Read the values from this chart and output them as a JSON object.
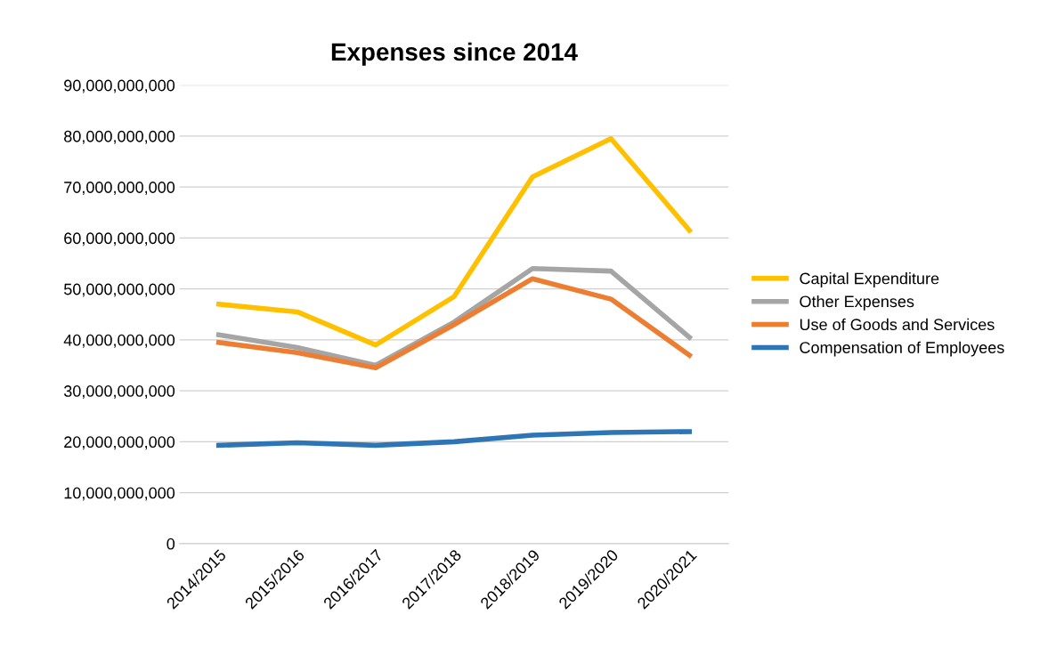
{
  "chart_data": {
    "type": "line",
    "title": "Expenses since 2014",
    "categories": [
      "2014/2015",
      "2015/2016",
      "2016/2017",
      "2017/2018",
      "2018/2019",
      "2019/2020",
      "2020/2021"
    ],
    "series": [
      {
        "name": "Capital Expenditure",
        "color": "#ffc000",
        "values": [
          47000000000,
          45500000000,
          39000000000,
          48500000000,
          72000000000,
          79500000000,
          61500000000
        ]
      },
      {
        "name": "Other Expenses",
        "color": "#a5a5a5",
        "values": [
          41000000000,
          38500000000,
          35000000000,
          43500000000,
          54000000000,
          53500000000,
          40500000000
        ]
      },
      {
        "name": "Use of Goods and Services",
        "color": "#ed7d31",
        "values": [
          39500000000,
          37500000000,
          34500000000,
          43000000000,
          52000000000,
          48000000000,
          37000000000
        ]
      },
      {
        "name": "Compensation of Employees",
        "color": "#2e75b6",
        "values": [
          19300000000,
          19800000000,
          19300000000,
          20000000000,
          21300000000,
          21800000000,
          22000000000
        ]
      }
    ],
    "ylim": [
      0,
      90000000000
    ],
    "yticks": [
      {
        "value": 0,
        "label": "0"
      },
      {
        "value": 10000000000,
        "label": "10,000,000,000"
      },
      {
        "value": 20000000000,
        "label": "20,000,000,000"
      },
      {
        "value": 30000000000,
        "label": "30,000,000,000"
      },
      {
        "value": 40000000000,
        "label": "40,000,000,000"
      },
      {
        "value": 50000000000,
        "label": "50,000,000,000"
      },
      {
        "value": 60000000000,
        "label": "60,000,000,000"
      },
      {
        "value": 70000000000,
        "label": "70,000,000,000"
      },
      {
        "value": 80000000000,
        "label": "80,000,000,000"
      },
      {
        "value": 90000000000,
        "label": "90,000,000,000"
      }
    ],
    "grid": "y",
    "legend": "right",
    "marker": "none",
    "line_style": "solid"
  }
}
